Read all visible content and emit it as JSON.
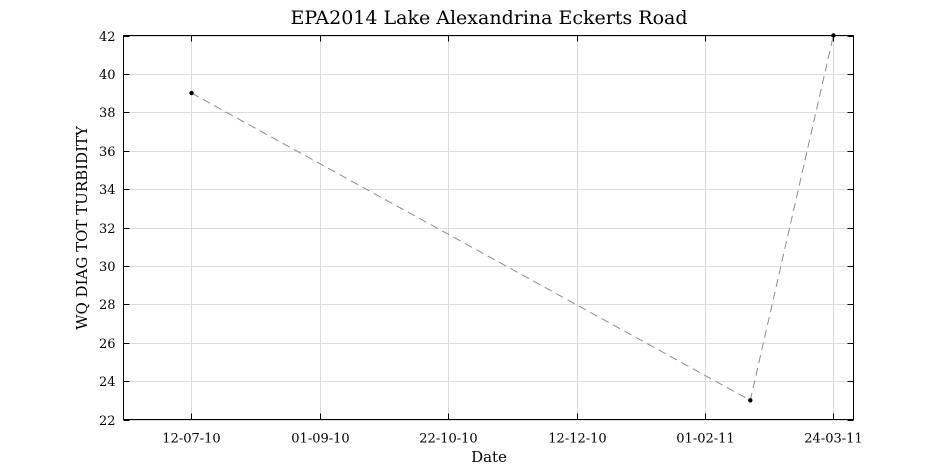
{
  "chart_data": {
    "type": "line",
    "title": "EPA2014 Lake Alexandrina Eckerts Road",
    "xlabel": "Date",
    "ylabel": "WQ DIAG TOT TURBIDITY",
    "x_tick_labels": [
      "12-07-10",
      "01-09-10",
      "22-10-10",
      "12-12-10",
      "01-02-11",
      "24-03-11"
    ],
    "x_tick_dates": [
      "2010-07-12",
      "2010-09-01",
      "2010-10-22",
      "2010-12-12",
      "2011-02-01",
      "2011-03-24"
    ],
    "xlim": [
      "2010-06-15",
      "2011-04-01"
    ],
    "ylim": [
      22,
      42
    ],
    "y_ticks": [
      22,
      24,
      26,
      28,
      30,
      32,
      34,
      36,
      38,
      40,
      42
    ],
    "grid": true,
    "series": [
      {
        "x": [
          "2010-07-12",
          "2011-02-19",
          "2011-03-24"
        ],
        "y": [
          39,
          23,
          42
        ]
      }
    ]
  }
}
